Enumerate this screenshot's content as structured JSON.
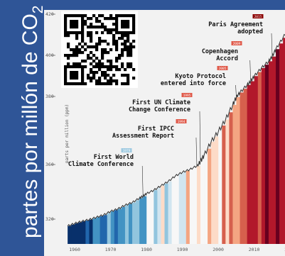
{
  "slide": {
    "side_label": "partes por millón de CO2",
    "side_label_main": "partes por millón de CO",
    "side_label_sub": "2"
  },
  "chart_data": {
    "type": "line",
    "title": "",
    "xlabel": "",
    "ylabel": "parts per million (ppm)",
    "xlim": [
      1955,
      2020
    ],
    "ylim": [
      312,
      420
    ],
    "x_ticks": [
      "1960",
      "1970",
      "1980",
      "1990",
      "2000",
      "2010",
      "202"
    ],
    "y_ticks": [
      "320",
      "360",
      "380",
      "400",
      "420"
    ],
    "series": [
      {
        "x": [
          1958,
          1960,
          1962,
          1964,
          1966,
          1968,
          1970,
          1972,
          1974,
          1976,
          1978,
          1979,
          1980,
          1982,
          1984,
          1986,
          1988,
          1990,
          1992,
          1994,
          1995,
          1996,
          1998,
          2000,
          2002,
          2004,
          2005,
          2006,
          2008,
          2009,
          2010,
          2012,
          2014,
          2015,
          2016,
          2018,
          2020
        ],
        "y": [
          315,
          316.9,
          318.4,
          319.6,
          321.4,
          323,
          325.7,
          327.5,
          330.2,
          332.2,
          335.4,
          336.8,
          338.7,
          341.2,
          344.4,
          347.6,
          351.6,
          354.4,
          356.3,
          359,
          361,
          362.6,
          366.7,
          369.7,
          373.2,
          377.5,
          379.8,
          381.9,
          385.6,
          387.4,
          389.9,
          393.8,
          397.1,
          399.4,
          403,
          408.5,
          414.2
        ]
      }
    ],
    "warming_stripes": {
      "years": [
        1958,
        2020
      ],
      "anomaly_colors": [
        "#08306b",
        "#2166ac",
        "#4393c3",
        "#92c5de",
        "#d1e5f0",
        "#f7f7f7",
        "#fddbc7",
        "#f4a582",
        "#d6604d",
        "#b2182b",
        "#67001f"
      ]
    },
    "annotations": [
      {
        "year": "1979",
        "x": 1979,
        "y": 336.8,
        "lines": [
          "First World",
          "Climate Conference"
        ]
      },
      {
        "year": "1994",
        "x": 1994,
        "y": 359,
        "lines": [
          "First IPCC",
          "Assessment Report"
        ]
      },
      {
        "year": "1995",
        "x": 1995,
        "y": 361,
        "lines": [
          "First UN Climate",
          "Change Conference"
        ]
      },
      {
        "year": "2005",
        "x": 2005,
        "y": 379.8,
        "lines": [
          "Kyoto Protocol",
          "entered into force"
        ]
      },
      {
        "year": "2009",
        "x": 2009,
        "y": 387.4,
        "lines": [
          "Copenhagen",
          "Accord"
        ]
      },
      {
        "year": "2015",
        "x": 2015,
        "y": 399.4,
        "lines": [
          "Paris Agreement",
          "adopted"
        ]
      }
    ]
  }
}
